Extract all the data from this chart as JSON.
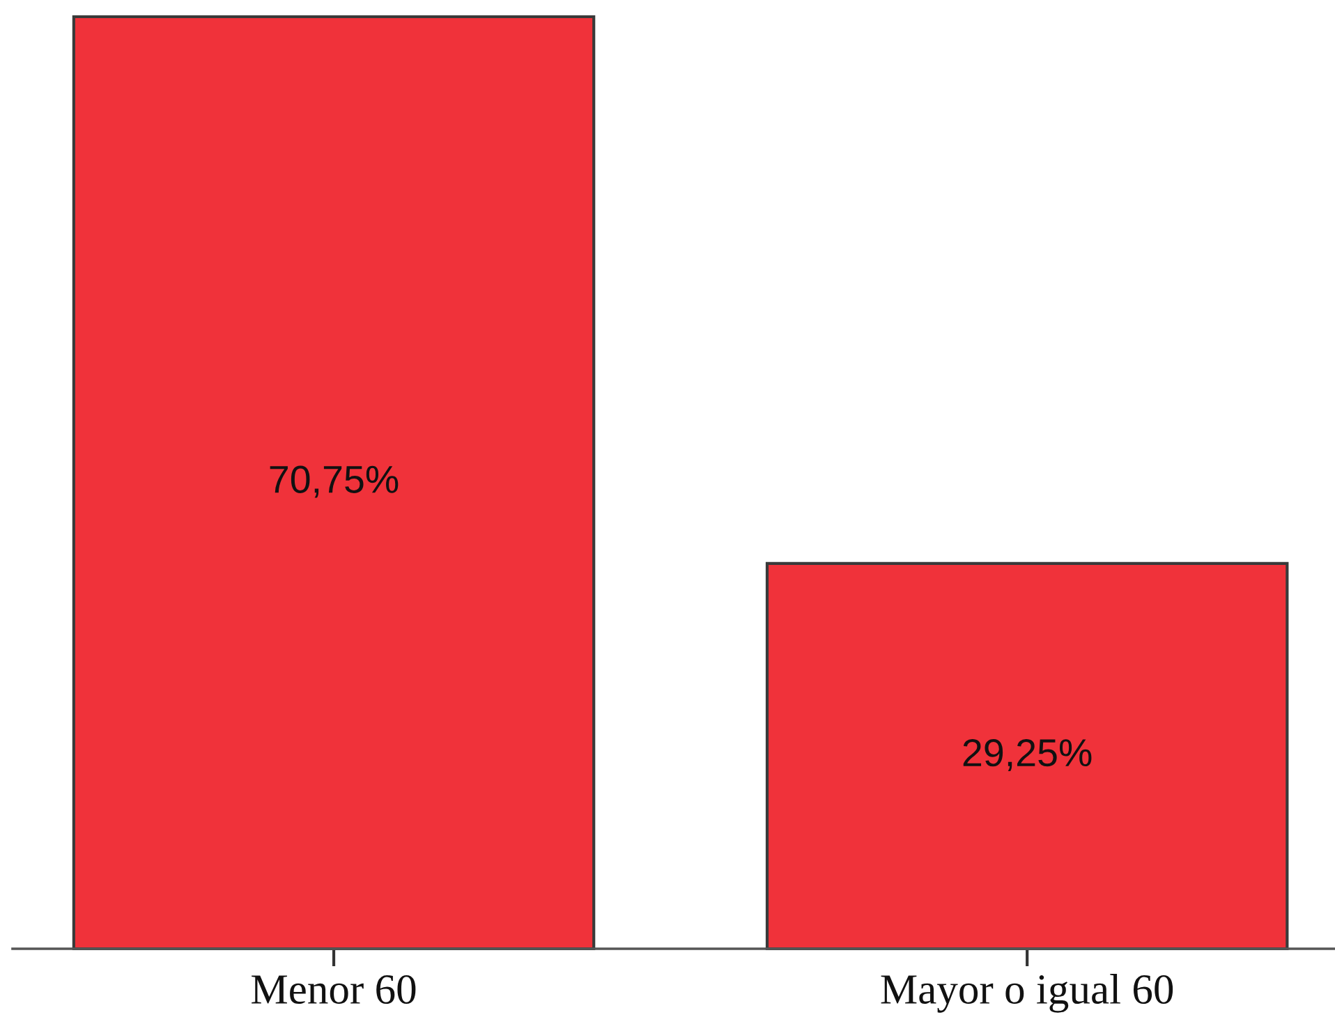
{
  "chart_data": {
    "type": "bar",
    "categories": [
      "Menor 60",
      "Mayor o igual 60"
    ],
    "values": [
      70.75,
      29.25
    ],
    "value_labels": [
      "70,75%",
      "29,25%"
    ],
    "color": "#f0323a",
    "tick_labels": "x"
  }
}
